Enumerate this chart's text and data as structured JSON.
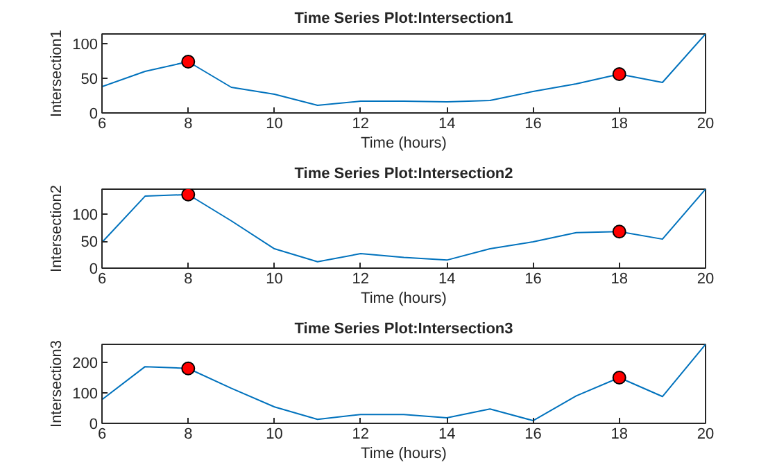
{
  "chart_data": [
    {
      "type": "line",
      "title": "Time Series Plot:Intersection1",
      "xlabel": "Time (hours)",
      "ylabel": "Intersection1",
      "x": [
        6,
        7,
        8,
        9,
        10,
        11,
        12,
        13,
        14,
        15,
        16,
        17,
        18,
        19,
        20
      ],
      "xlim": [
        6,
        20
      ],
      "ylim": [
        0,
        114
      ],
      "xticks": [
        6,
        8,
        10,
        12,
        14,
        16,
        18,
        20
      ],
      "yticks": [
        0,
        50,
        100
      ],
      "grid": false,
      "series": [
        {
          "color": "#0072bd",
          "line_style": "solid",
          "marker": "none",
          "values": [
            38,
            60,
            74,
            37,
            27,
            11,
            17,
            17,
            16,
            18,
            31,
            42,
            56,
            44,
            114
          ]
        },
        {
          "type": "scatter",
          "color": "#ff0000",
          "marker": "circle",
          "values": [
            null,
            null,
            74,
            null,
            null,
            null,
            null,
            null,
            null,
            null,
            null,
            null,
            56,
            null,
            null
          ]
        }
      ]
    },
    {
      "type": "line",
      "title": "Time Series Plot:Intersection2",
      "xlabel": "Time (hours)",
      "ylabel": "Intersection2",
      "x": [
        6,
        7,
        8,
        9,
        10,
        11,
        12,
        13,
        14,
        15,
        16,
        17,
        18,
        19,
        20
      ],
      "xlim": [
        6,
        20
      ],
      "ylim": [
        0,
        147
      ],
      "xticks": [
        6,
        8,
        10,
        12,
        14,
        16,
        18,
        20
      ],
      "yticks": [
        0,
        50,
        100
      ],
      "grid": false,
      "series": [
        {
          "color": "#0072bd",
          "line_style": "solid",
          "marker": "none",
          "values": [
            48,
            134,
            137,
            88,
            36,
            12,
            27,
            20,
            15,
            36,
            49,
            66,
            68,
            54,
            147
          ]
        },
        {
          "type": "scatter",
          "color": "#ff0000",
          "marker": "circle",
          "values": [
            null,
            null,
            137,
            null,
            null,
            null,
            null,
            null,
            null,
            null,
            null,
            null,
            68,
            null,
            null
          ]
        }
      ]
    },
    {
      "type": "line",
      "title": "Time Series Plot:Intersection3",
      "xlabel": "Time (hours)",
      "ylabel": "Intersection3",
      "x": [
        6,
        7,
        8,
        9,
        10,
        11,
        12,
        13,
        14,
        15,
        16,
        17,
        18,
        19,
        20
      ],
      "xlim": [
        6,
        20
      ],
      "ylim": [
        0,
        259
      ],
      "xticks": [
        6,
        8,
        10,
        12,
        14,
        16,
        18,
        20
      ],
      "yticks": [
        0,
        100,
        200
      ],
      "grid": false,
      "series": [
        {
          "color": "#0072bd",
          "line_style": "solid",
          "marker": "none",
          "values": [
            78,
            186,
            180,
            115,
            54,
            13,
            29,
            29,
            18,
            47,
            9,
            90,
            150,
            88,
            259
          ]
        },
        {
          "type": "scatter",
          "color": "#ff0000",
          "marker": "circle",
          "values": [
            null,
            null,
            180,
            null,
            null,
            null,
            null,
            null,
            null,
            null,
            null,
            null,
            150,
            null,
            null
          ]
        }
      ]
    }
  ]
}
